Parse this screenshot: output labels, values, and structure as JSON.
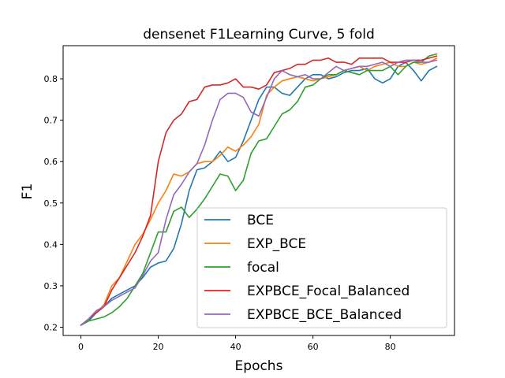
{
  "chart_data": {
    "type": "line",
    "title": "densenet F1Learning Curve, 5 fold",
    "xlabel": "Epochs",
    "ylabel": "F1",
    "xlim": [
      -4.6,
      96.6
    ],
    "ylim": [
      0.18,
      0.88
    ],
    "xticks": [
      0,
      20,
      40,
      60,
      80
    ],
    "yticks": [
      0.2,
      0.3,
      0.4,
      0.5,
      0.6,
      0.7,
      0.8
    ],
    "grid": false,
    "legend_position": "lower-right",
    "series": [
      {
        "name": "BCE",
        "color": "#1f77b4",
        "points": [
          [
            0,
            0.205
          ],
          [
            2,
            0.215
          ],
          [
            4,
            0.235
          ],
          [
            6,
            0.25
          ],
          [
            8,
            0.27
          ],
          [
            10,
            0.28
          ],
          [
            12,
            0.29
          ],
          [
            14,
            0.3
          ],
          [
            16,
            0.32
          ],
          [
            18,
            0.345
          ],
          [
            20,
            0.355
          ],
          [
            22,
            0.36
          ],
          [
            24,
            0.39
          ],
          [
            26,
            0.45
          ],
          [
            28,
            0.53
          ],
          [
            30,
            0.58
          ],
          [
            32,
            0.585
          ],
          [
            34,
            0.6
          ],
          [
            36,
            0.625
          ],
          [
            38,
            0.6
          ],
          [
            40,
            0.61
          ],
          [
            42,
            0.65
          ],
          [
            44,
            0.7
          ],
          [
            46,
            0.75
          ],
          [
            48,
            0.78
          ],
          [
            50,
            0.78
          ],
          [
            52,
            0.765
          ],
          [
            54,
            0.76
          ],
          [
            56,
            0.78
          ],
          [
            58,
            0.8
          ],
          [
            60,
            0.81
          ],
          [
            62,
            0.81
          ],
          [
            64,
            0.8
          ],
          [
            66,
            0.805
          ],
          [
            68,
            0.815
          ],
          [
            70,
            0.82
          ],
          [
            72,
            0.82
          ],
          [
            74,
            0.825
          ],
          [
            76,
            0.8
          ],
          [
            78,
            0.79
          ],
          [
            80,
            0.8
          ],
          [
            82,
            0.83
          ],
          [
            84,
            0.84
          ],
          [
            86,
            0.82
          ],
          [
            88,
            0.795
          ],
          [
            90,
            0.82
          ],
          [
            92,
            0.83
          ]
        ]
      },
      {
        "name": "EXP_BCE",
        "color": "#ff7f0e",
        "points": [
          [
            0,
            0.205
          ],
          [
            2,
            0.22
          ],
          [
            4,
            0.235
          ],
          [
            6,
            0.255
          ],
          [
            8,
            0.3
          ],
          [
            10,
            0.32
          ],
          [
            12,
            0.36
          ],
          [
            14,
            0.4
          ],
          [
            16,
            0.425
          ],
          [
            18,
            0.46
          ],
          [
            20,
            0.5
          ],
          [
            22,
            0.53
          ],
          [
            24,
            0.57
          ],
          [
            26,
            0.565
          ],
          [
            28,
            0.575
          ],
          [
            30,
            0.595
          ],
          [
            32,
            0.6
          ],
          [
            34,
            0.6
          ],
          [
            36,
            0.615
          ],
          [
            38,
            0.635
          ],
          [
            40,
            0.625
          ],
          [
            42,
            0.64
          ],
          [
            44,
            0.66
          ],
          [
            46,
            0.69
          ],
          [
            48,
            0.76
          ],
          [
            50,
            0.78
          ],
          [
            52,
            0.795
          ],
          [
            54,
            0.8
          ],
          [
            56,
            0.805
          ],
          [
            58,
            0.8
          ],
          [
            60,
            0.795
          ],
          [
            62,
            0.8
          ],
          [
            64,
            0.805
          ],
          [
            66,
            0.81
          ],
          [
            68,
            0.82
          ],
          [
            70,
            0.825
          ],
          [
            72,
            0.83
          ],
          [
            74,
            0.82
          ],
          [
            76,
            0.83
          ],
          [
            78,
            0.835
          ],
          [
            80,
            0.84
          ],
          [
            82,
            0.83
          ],
          [
            84,
            0.83
          ],
          [
            86,
            0.84
          ],
          [
            88,
            0.835
          ],
          [
            90,
            0.84
          ],
          [
            92,
            0.85
          ]
        ]
      },
      {
        "name": "focal",
        "color": "#2ca02c",
        "points": [
          [
            0,
            0.205
          ],
          [
            2,
            0.215
          ],
          [
            4,
            0.22
          ],
          [
            6,
            0.225
          ],
          [
            8,
            0.235
          ],
          [
            10,
            0.25
          ],
          [
            12,
            0.27
          ],
          [
            14,
            0.3
          ],
          [
            16,
            0.33
          ],
          [
            18,
            0.38
          ],
          [
            20,
            0.43
          ],
          [
            22,
            0.43
          ],
          [
            24,
            0.48
          ],
          [
            26,
            0.49
          ],
          [
            28,
            0.465
          ],
          [
            30,
            0.485
          ],
          [
            32,
            0.51
          ],
          [
            34,
            0.54
          ],
          [
            36,
            0.57
          ],
          [
            38,
            0.565
          ],
          [
            40,
            0.53
          ],
          [
            42,
            0.555
          ],
          [
            44,
            0.62
          ],
          [
            46,
            0.65
          ],
          [
            48,
            0.655
          ],
          [
            50,
            0.685
          ],
          [
            52,
            0.715
          ],
          [
            54,
            0.725
          ],
          [
            56,
            0.745
          ],
          [
            58,
            0.78
          ],
          [
            60,
            0.785
          ],
          [
            62,
            0.8
          ],
          [
            64,
            0.81
          ],
          [
            66,
            0.81
          ],
          [
            68,
            0.82
          ],
          [
            70,
            0.815
          ],
          [
            72,
            0.81
          ],
          [
            74,
            0.82
          ],
          [
            76,
            0.82
          ],
          [
            78,
            0.82
          ],
          [
            80,
            0.83
          ],
          [
            82,
            0.81
          ],
          [
            84,
            0.83
          ],
          [
            86,
            0.84
          ],
          [
            88,
            0.84
          ],
          [
            90,
            0.855
          ],
          [
            92,
            0.86
          ]
        ]
      },
      {
        "name": "EXPBCE_Focal_Balanced",
        "color": "#d62728",
        "points": [
          [
            0,
            0.205
          ],
          [
            2,
            0.22
          ],
          [
            4,
            0.235
          ],
          [
            6,
            0.25
          ],
          [
            8,
            0.29
          ],
          [
            10,
            0.32
          ],
          [
            12,
            0.35
          ],
          [
            14,
            0.38
          ],
          [
            16,
            0.42
          ],
          [
            18,
            0.47
          ],
          [
            20,
            0.6
          ],
          [
            22,
            0.67
          ],
          [
            24,
            0.7
          ],
          [
            26,
            0.715
          ],
          [
            28,
            0.745
          ],
          [
            30,
            0.75
          ],
          [
            32,
            0.78
          ],
          [
            34,
            0.785
          ],
          [
            36,
            0.785
          ],
          [
            38,
            0.79
          ],
          [
            40,
            0.8
          ],
          [
            42,
            0.78
          ],
          [
            44,
            0.78
          ],
          [
            46,
            0.775
          ],
          [
            48,
            0.785
          ],
          [
            50,
            0.815
          ],
          [
            52,
            0.82
          ],
          [
            54,
            0.825
          ],
          [
            56,
            0.835
          ],
          [
            58,
            0.835
          ],
          [
            60,
            0.845
          ],
          [
            62,
            0.845
          ],
          [
            64,
            0.85
          ],
          [
            66,
            0.84
          ],
          [
            68,
            0.84
          ],
          [
            70,
            0.835
          ],
          [
            72,
            0.85
          ],
          [
            74,
            0.85
          ],
          [
            76,
            0.85
          ],
          [
            78,
            0.85
          ],
          [
            80,
            0.84
          ],
          [
            82,
            0.84
          ],
          [
            84,
            0.84
          ],
          [
            86,
            0.845
          ],
          [
            88,
            0.845
          ],
          [
            90,
            0.85
          ],
          [
            92,
            0.855
          ]
        ]
      },
      {
        "name": "EXPBCE_BCE_Balanced",
        "color": "#9467bd",
        "points": [
          [
            0,
            0.205
          ],
          [
            2,
            0.22
          ],
          [
            4,
            0.24
          ],
          [
            6,
            0.25
          ],
          [
            8,
            0.265
          ],
          [
            10,
            0.275
          ],
          [
            12,
            0.285
          ],
          [
            14,
            0.295
          ],
          [
            16,
            0.325
          ],
          [
            18,
            0.36
          ],
          [
            20,
            0.38
          ],
          [
            22,
            0.46
          ],
          [
            24,
            0.52
          ],
          [
            26,
            0.545
          ],
          [
            28,
            0.575
          ],
          [
            30,
            0.595
          ],
          [
            32,
            0.64
          ],
          [
            34,
            0.7
          ],
          [
            36,
            0.75
          ],
          [
            38,
            0.765
          ],
          [
            40,
            0.765
          ],
          [
            42,
            0.755
          ],
          [
            44,
            0.72
          ],
          [
            46,
            0.71
          ],
          [
            48,
            0.755
          ],
          [
            50,
            0.8
          ],
          [
            52,
            0.82
          ],
          [
            54,
            0.81
          ],
          [
            56,
            0.805
          ],
          [
            58,
            0.81
          ],
          [
            60,
            0.8
          ],
          [
            62,
            0.8
          ],
          [
            64,
            0.815
          ],
          [
            66,
            0.83
          ],
          [
            68,
            0.82
          ],
          [
            70,
            0.825
          ],
          [
            72,
            0.83
          ],
          [
            74,
            0.83
          ],
          [
            76,
            0.835
          ],
          [
            78,
            0.84
          ],
          [
            80,
            0.83
          ],
          [
            82,
            0.84
          ],
          [
            84,
            0.845
          ],
          [
            86,
            0.845
          ],
          [
            88,
            0.84
          ],
          [
            90,
            0.84
          ],
          [
            92,
            0.845
          ]
        ]
      }
    ]
  }
}
